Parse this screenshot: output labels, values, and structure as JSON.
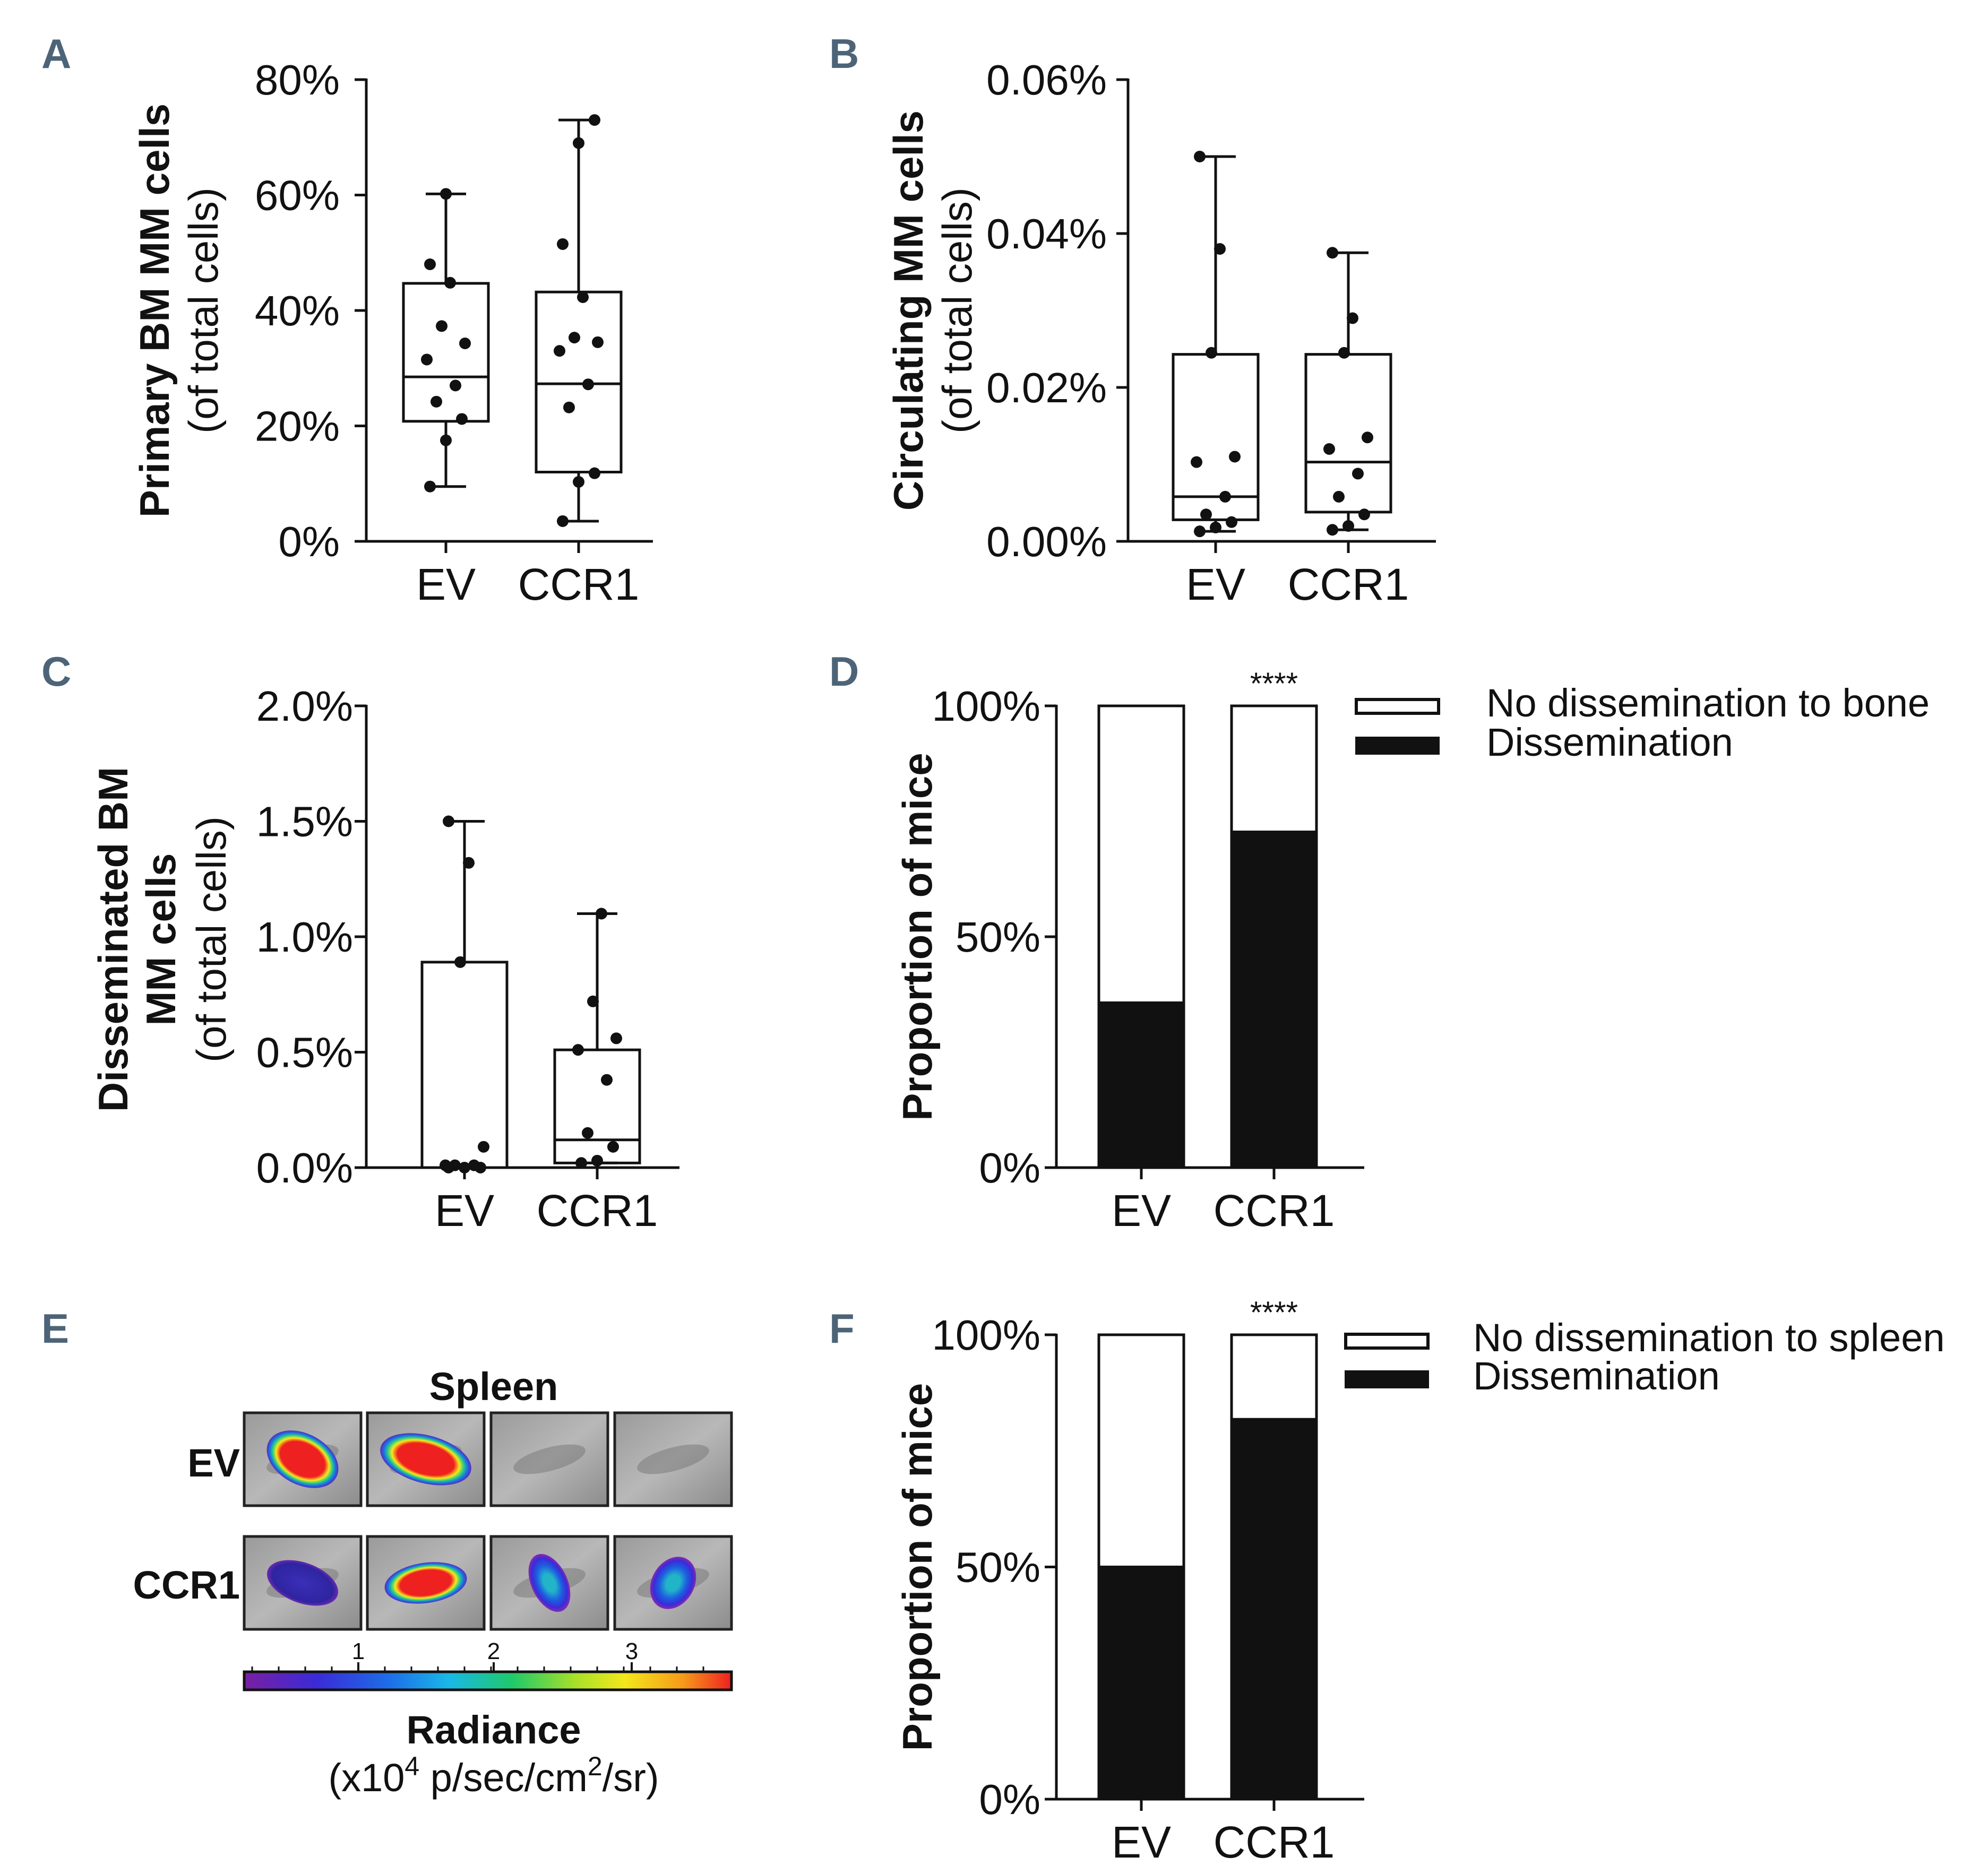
{
  "chart_data": [
    {
      "panel": "A",
      "type": "box",
      "ylabel_bold": "Primary BM MM cells",
      "ylabel_sub": "(of total cells)",
      "ylim": [
        0,
        80
      ],
      "yticks": [
        0,
        20,
        40,
        60,
        80
      ],
      "ytick_labels": [
        "0%",
        "20%",
        "40%",
        "60%",
        "80%"
      ],
      "categories": [
        "EV",
        "CCR1"
      ],
      "boxes": [
        {
          "name": "EV",
          "min": 9.5,
          "q1": 20.8,
          "median": 28.5,
          "q3": 44.7,
          "max": 60.2,
          "points": [
            9.5,
            17.5,
            21.2,
            24.2,
            27.0,
            31.5,
            34.3,
            37.3,
            44.8,
            48.0,
            60.2
          ]
        },
        {
          "name": "CCR1",
          "min": 3.5,
          "q1": 12.0,
          "median": 27.3,
          "q3": 43.2,
          "max": 73.0,
          "points": [
            3.5,
            10.3,
            11.8,
            23.2,
            27.2,
            33.0,
            34.5,
            35.3,
            42.3,
            51.5,
            69.0,
            73.0
          ]
        }
      ]
    },
    {
      "panel": "B",
      "type": "box",
      "ylabel_bold": "Circulating MM cells",
      "ylabel_sub": "(of total cells)",
      "ylim": [
        0,
        0.06
      ],
      "yticks": [
        0,
        0.02,
        0.04,
        0.06
      ],
      "ytick_labels": [
        "0.00%",
        "0.02%",
        "0.04%",
        "0.06%"
      ],
      "categories": [
        "EV",
        "CCR1"
      ],
      "boxes": [
        {
          "name": "EV",
          "min": 0.0013,
          "q1": 0.0028,
          "median": 0.0058,
          "q3": 0.0243,
          "max": 0.05,
          "points": [
            0.0013,
            0.0018,
            0.0025,
            0.0035,
            0.0058,
            0.0103,
            0.011,
            0.0245,
            0.038,
            0.05
          ]
        },
        {
          "name": "CCR1",
          "min": 0.0015,
          "q1": 0.0038,
          "median": 0.0103,
          "q3": 0.0243,
          "max": 0.0375,
          "points": [
            0.0015,
            0.002,
            0.0035,
            0.0058,
            0.0088,
            0.012,
            0.0135,
            0.0245,
            0.029,
            0.0375
          ]
        }
      ]
    },
    {
      "panel": "C",
      "type": "box",
      "ylabel_bold_1": "Disseminated BM",
      "ylabel_bold_2": "MM cells",
      "ylabel_sub": "(of total cells)",
      "ylim": [
        0,
        2.0
      ],
      "yticks": [
        0,
        0.5,
        1.0,
        1.5,
        2.0
      ],
      "ytick_labels": [
        "0.0%",
        "0.5%",
        "1.0%",
        "1.5%",
        "2.0%"
      ],
      "categories": [
        "EV",
        "CCR1"
      ],
      "boxes": [
        {
          "name": "EV",
          "min": 0.0,
          "q1": 0.0,
          "median": 0.0,
          "q3": 0.89,
          "max": 1.5,
          "points": [
            0.0,
            0.0,
            0.0,
            0.01,
            0.01,
            0.01,
            0.09,
            0.89,
            1.32,
            1.5
          ]
        },
        {
          "name": "CCR1",
          "min": 0.02,
          "q1": 0.02,
          "median": 0.12,
          "q3": 0.51,
          "max": 1.1,
          "points": [
            0.02,
            0.03,
            0.09,
            0.15,
            0.38,
            0.51,
            0.56,
            0.72,
            1.1
          ]
        }
      ]
    },
    {
      "panel": "D",
      "type": "bar",
      "stacked": true,
      "ylabel": "Proportion of mice",
      "ylim": [
        0,
        100
      ],
      "yticks": [
        0,
        50,
        100
      ],
      "ytick_labels": [
        "0%",
        "50%",
        "100%"
      ],
      "categories": [
        "EV",
        "CCR1"
      ],
      "series": [
        {
          "name": "Dissemination",
          "values": [
            35.7,
            72.7
          ],
          "color": "#111111"
        },
        {
          "name": "No dissemination to bone",
          "values": [
            64.3,
            27.3
          ],
          "color": "#ffffff"
        }
      ],
      "significance": "****"
    },
    {
      "panel": "F",
      "type": "bar",
      "stacked": true,
      "ylabel": "Proportion of mice",
      "ylim": [
        0,
        100
      ],
      "yticks": [
        0,
        50,
        100
      ],
      "ytick_labels": [
        "0%",
        "50%",
        "100%"
      ],
      "categories": [
        "EV",
        "CCR1"
      ],
      "series": [
        {
          "name": "Dissemination",
          "values": [
            50,
            81.8
          ],
          "color": "#111111"
        },
        {
          "name": "No dissemination to spleen",
          "values": [
            50,
            18.2
          ],
          "color": "#ffffff"
        }
      ],
      "significance": "****"
    }
  ],
  "panels": {
    "letters": [
      "A",
      "B",
      "C",
      "D",
      "E",
      "F"
    ]
  },
  "imaging": {
    "title": "Spleen",
    "rows": [
      "EV",
      "CCR1"
    ],
    "colorbar_ticks": [
      "1",
      "2",
      "3"
    ],
    "radiance_title": "Radiance",
    "radiance_unit_prefix": "(x10",
    "radiance_unit_exp": "4",
    "radiance_unit_mid": " p/sec/cm",
    "radiance_unit_exp2": "2",
    "radiance_unit_suffix": "/sr)"
  }
}
